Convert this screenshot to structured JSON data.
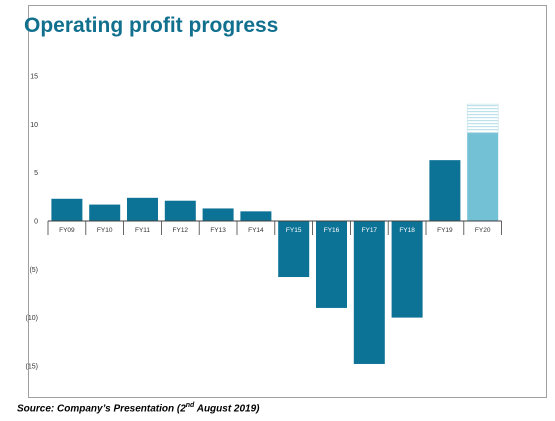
{
  "title": "Operating profit progress",
  "source": {
    "prefix": "Source: Company’s Presentation (2",
    "superscript": "nd",
    "suffix": " August 2019)"
  },
  "colors": {
    "bar": "#0d7396",
    "forecast": "#72c1d4",
    "forecast_hatch": "#bfe1ec",
    "axis": "#404040",
    "title": "#12708f"
  },
  "chart_data": {
    "type": "bar",
    "title": "Operating profit progress",
    "xlabel": "",
    "ylabel": "",
    "ylim": [
      -15,
      15
    ],
    "y_ticks": [
      {
        "value": 15,
        "label": "15"
      },
      {
        "value": 10,
        "label": "10"
      },
      {
        "value": 5,
        "label": "5"
      },
      {
        "value": 0,
        "label": "0"
      },
      {
        "value": -5,
        "label": "(5)"
      },
      {
        "value": -10,
        "label": "(10)"
      },
      {
        "value": -15,
        "label": "(15)"
      }
    ],
    "categories": [
      "FY09",
      "FY10",
      "FY11",
      "FY12",
      "FY13",
      "FY14",
      "FY15",
      "FY16",
      "FY17",
      "FY18",
      "FY19",
      "FY20"
    ],
    "values": [
      2.3,
      1.7,
      2.4,
      2.1,
      1.3,
      1.0,
      -5.8,
      -9.0,
      -14.8,
      -10.0,
      6.3,
      9.1
    ],
    "forecast_range": {
      "category": "FY20",
      "low": 9.1,
      "high": 12.1
    },
    "grid": false,
    "legend": "none"
  }
}
